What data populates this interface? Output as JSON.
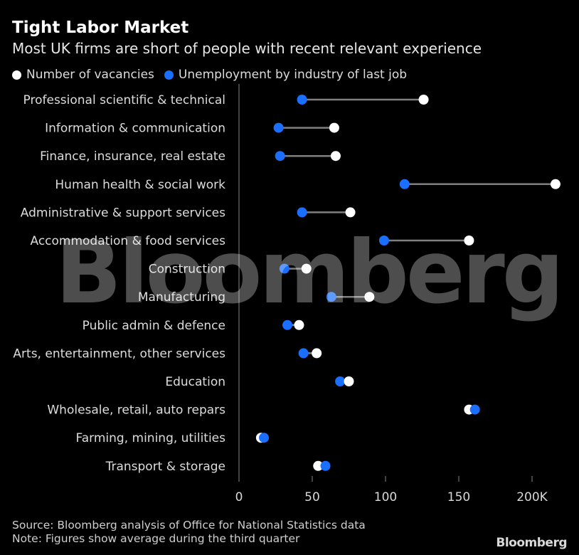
{
  "header": {
    "title": "Tight Labor Market",
    "subtitle": "Most UK firms are short of people with recent relevant experience"
  },
  "colors": {
    "background": "#000000",
    "vacancies": "#ffffff",
    "unemployment": "#1a6fff",
    "connector": "#7f7f7f",
    "axis": "#888888"
  },
  "chart_data": {
    "type": "scatter",
    "subtype": "dumbbell",
    "orientation": "horizontal",
    "title": "Tight Labor Market",
    "subtitle": "Most UK firms are short of people with recent relevant experience",
    "categories": [
      "Professional scientific & technical",
      "Information & communication",
      "Finance, insurance, real estate",
      "Human health & social work",
      "Administrative & support services",
      "Accommodation & food services",
      "Construction",
      "Manufacturing",
      "Public admin & defence",
      "Arts, entertainment, other services",
      "Education",
      "Wholesale, retail, auto repars",
      "Farming, mining, utilities",
      "Transport & storage"
    ],
    "series": [
      {
        "name": "Number of vacancies",
        "values": [
          126,
          65,
          66,
          216,
          76,
          157,
          46,
          89,
          41,
          53,
          75,
          157,
          15,
          54
        ]
      },
      {
        "name": "Unemployment by industry of last job",
        "values": [
          43,
          27,
          28,
          113,
          43,
          99,
          31,
          63,
          33,
          44,
          69,
          161,
          17,
          59
        ]
      }
    ],
    "xlim": [
      0,
      215
    ],
    "xticks": [
      "0",
      "50",
      "100",
      "150",
      "200K"
    ],
    "xtick_values": [
      0,
      50,
      100,
      150,
      200
    ],
    "legend_position": "top-left",
    "grid": false
  },
  "watermark": "Bloomberg",
  "footer": {
    "source": "Source: Bloomberg analysis of Office for National Statistics data",
    "note": "Note: Figures show average during the third quarter",
    "brand": "Bloomberg"
  }
}
